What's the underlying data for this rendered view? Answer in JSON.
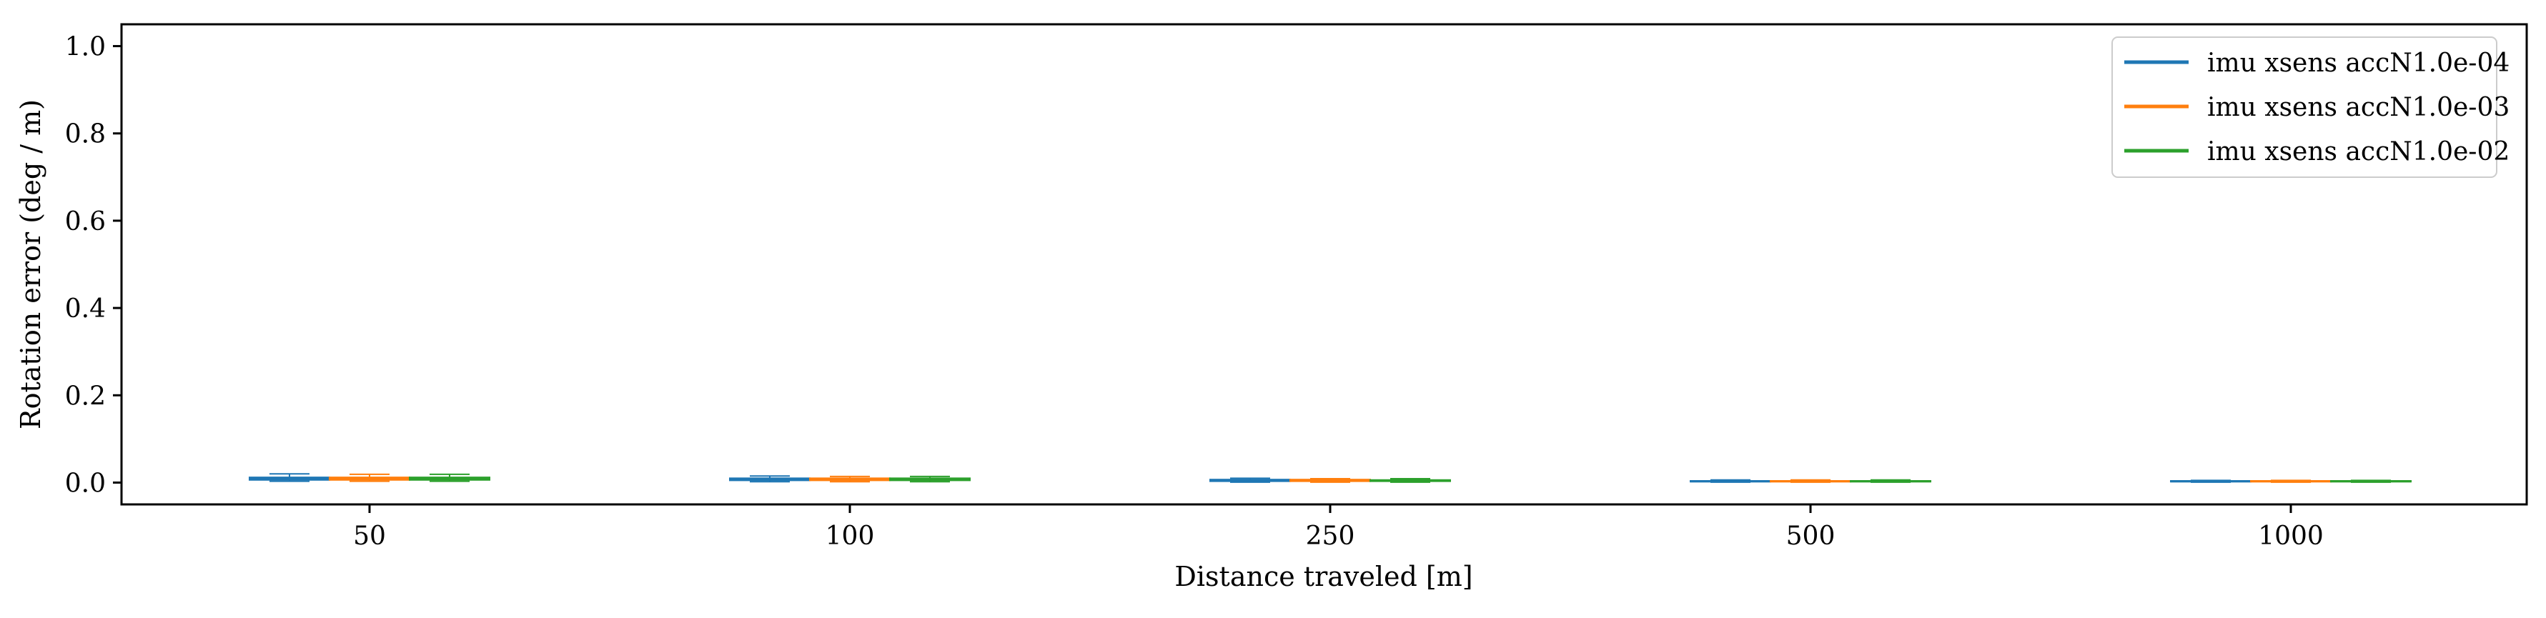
{
  "chart_data": {
    "type": "box",
    "title": "",
    "xlabel": "Distance traveled [m]",
    "ylabel": "Rotation error (deg / m)",
    "categories": [
      "50",
      "100",
      "250",
      "500",
      "1000"
    ],
    "ylim": [
      -0.05,
      1.05
    ],
    "yticks": [
      0.0,
      0.2,
      0.4,
      0.6,
      0.8,
      1.0
    ],
    "ytick_labels": [
      "0.0",
      "0.2",
      "0.4",
      "0.6",
      "0.8",
      "1.0"
    ],
    "grid": false,
    "legend_position": "top-right",
    "series": [
      {
        "name": "imu xsens accN1.0e-04",
        "color": "#1f77b4",
        "boxes": [
          {
            "whislo": 0.003,
            "q1": 0.006,
            "med": 0.009,
            "q3": 0.012,
            "whishi": 0.02
          },
          {
            "whislo": 0.002,
            "q1": 0.005,
            "med": 0.007,
            "q3": 0.01,
            "whishi": 0.015
          },
          {
            "whislo": 0.001,
            "q1": 0.003,
            "med": 0.005,
            "q3": 0.007,
            "whishi": 0.01
          },
          {
            "whislo": 0.001,
            "q1": 0.002,
            "med": 0.003,
            "q3": 0.004,
            "whishi": 0.006
          },
          {
            "whislo": 0.001,
            "q1": 0.002,
            "med": 0.003,
            "q3": 0.004,
            "whishi": 0.005
          }
        ]
      },
      {
        "name": "imu xsens accN1.0e-03",
        "color": "#ff7f0e",
        "boxes": [
          {
            "whislo": 0.003,
            "q1": 0.006,
            "med": 0.009,
            "q3": 0.012,
            "whishi": 0.019
          },
          {
            "whislo": 0.002,
            "q1": 0.005,
            "med": 0.007,
            "q3": 0.01,
            "whishi": 0.014
          },
          {
            "whislo": 0.001,
            "q1": 0.003,
            "med": 0.005,
            "q3": 0.007,
            "whishi": 0.009
          },
          {
            "whislo": 0.001,
            "q1": 0.002,
            "med": 0.003,
            "q3": 0.004,
            "whishi": 0.006
          },
          {
            "whislo": 0.001,
            "q1": 0.002,
            "med": 0.003,
            "q3": 0.004,
            "whishi": 0.005
          }
        ]
      },
      {
        "name": "imu xsens accN1.0e-02",
        "color": "#2ca02c",
        "boxes": [
          {
            "whislo": 0.003,
            "q1": 0.006,
            "med": 0.009,
            "q3": 0.012,
            "whishi": 0.019
          },
          {
            "whislo": 0.002,
            "q1": 0.005,
            "med": 0.007,
            "q3": 0.01,
            "whishi": 0.014
          },
          {
            "whislo": 0.001,
            "q1": 0.003,
            "med": 0.004,
            "q3": 0.006,
            "whishi": 0.009
          },
          {
            "whislo": 0.001,
            "q1": 0.002,
            "med": 0.003,
            "q3": 0.004,
            "whishi": 0.006
          },
          {
            "whislo": 0.001,
            "q1": 0.002,
            "med": 0.003,
            "q3": 0.004,
            "whishi": 0.005
          }
        ]
      }
    ]
  }
}
